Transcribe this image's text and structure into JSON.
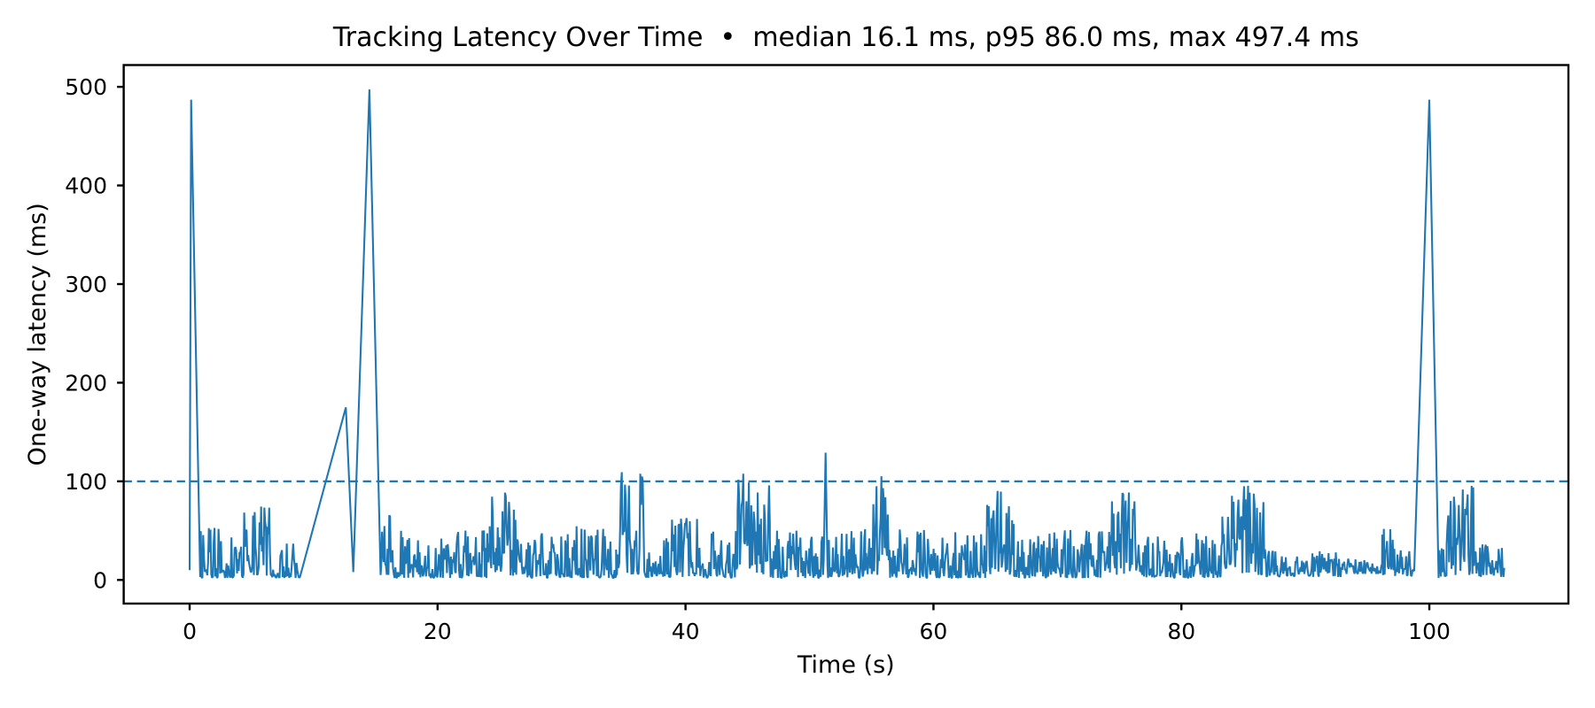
{
  "header": {
    "title": "Tracking Latency Over Time  •  median 16.1 ms, p95 86.0 ms, max 497.4 ms"
  },
  "chart_data": {
    "type": "line",
    "title": "Tracking Latency Over Time",
    "title_display": "Tracking Latency Over Time  •  median 16.1 ms, p95 86.0 ms, max 497.4 ms",
    "stats": {
      "median_ms": 16.1,
      "p95_ms": 86.0,
      "max_ms": 497.4
    },
    "xlabel": "Time (s)",
    "ylabel": "One-way latency (ms)",
    "xlim": [
      -5.32,
      111.22
    ],
    "ylim": [
      -23.96,
      522.1
    ],
    "xticks": [
      0,
      20,
      40,
      60,
      80,
      100
    ],
    "yticks": [
      0,
      100,
      200,
      300,
      400,
      500
    ],
    "grid": false,
    "legend": "none",
    "line_color": "#1f77b4",
    "threshold_ms": 100,
    "threshold_color": "#1f77b4",
    "threshold_style": "dashed",
    "spine_color": "#000000",
    "time_span_s": [
      0,
      106.1
    ],
    "keypoints": {
      "start_spike": [
        0.12,
        487
      ],
      "ramp": [
        [
          8.9,
          3
        ],
        [
          12.6,
          175
        ],
        [
          13.2,
          8
        ]
      ],
      "max_spike": [
        14.5,
        497.4
      ],
      "mid_spike": [
        51.3,
        129
      ],
      "end_spike": [
        100.0,
        487
      ],
      "burst_peaks": [
        [
          5.5,
          92
        ],
        [
          16.0,
          84
        ],
        [
          25.5,
          92
        ],
        [
          35.5,
          110
        ],
        [
          45.5,
          108
        ],
        [
          55.5,
          107
        ],
        [
          65.5,
          100
        ],
        [
          75.5,
          92
        ],
        [
          85.0,
          96
        ],
        [
          102.5,
          97
        ]
      ]
    },
    "noise_model": {
      "seed": 987654321,
      "dt_s": 0.065,
      "min_ms": 0.3
    },
    "segments": [
      {
        "kind": "line",
        "points": [
          [
            0,
            10
          ],
          [
            0.12,
            487
          ],
          [
            0.85,
            3
          ]
        ]
      },
      {
        "kind": "noise",
        "t0": 0.9,
        "t1": 4.4,
        "lo": 2,
        "hi": 55,
        "pow": 2.2
      },
      {
        "kind": "noise",
        "t0": 4.4,
        "t1": 6.6,
        "lo": 4,
        "hi": 92,
        "pow": 1.5
      },
      {
        "kind": "noise",
        "t0": 6.6,
        "t1": 8.85,
        "lo": 2,
        "hi": 38,
        "pow": 2.2
      },
      {
        "kind": "line",
        "points": [
          [
            8.9,
            3
          ],
          [
            12.6,
            175
          ],
          [
            13.2,
            8
          ],
          [
            14.5,
            497.4
          ],
          [
            15.4,
            5
          ]
        ]
      },
      {
        "kind": "noise",
        "t0": 15.45,
        "t1": 16.4,
        "lo": 5,
        "hi": 84,
        "pow": 1.5
      },
      {
        "kind": "noise",
        "t0": 16.4,
        "t1": 24.2,
        "lo": 2,
        "hi": 52,
        "pow": 2.2
      },
      {
        "kind": "noise",
        "t0": 24.2,
        "t1": 26.6,
        "lo": 4,
        "hi": 92,
        "pow": 1.5
      },
      {
        "kind": "noise",
        "t0": 26.6,
        "t1": 34.4,
        "lo": 2,
        "hi": 55,
        "pow": 2.2
      },
      {
        "kind": "noise",
        "t0": 34.4,
        "t1": 36.8,
        "lo": 5,
        "hi": 110,
        "pow": 1.5
      },
      {
        "kind": "noise",
        "t0": 36.8,
        "t1": 38.2,
        "lo": 2,
        "hi": 45,
        "pow": 2.2
      },
      {
        "kind": "noise",
        "t0": 38.2,
        "t1": 41.0,
        "lo": 3,
        "hi": 70,
        "pow": 1.8
      },
      {
        "kind": "noise",
        "t0": 41.0,
        "t1": 44.2,
        "lo": 2,
        "hi": 50,
        "pow": 2.2
      },
      {
        "kind": "noise",
        "t0": 44.2,
        "t1": 46.8,
        "lo": 5,
        "hi": 108,
        "pow": 1.5
      },
      {
        "kind": "noise",
        "t0": 46.8,
        "t1": 51.1,
        "lo": 2,
        "hi": 52,
        "pow": 2.2
      },
      {
        "kind": "line",
        "points": [
          [
            51.15,
            20
          ],
          [
            51.3,
            129
          ],
          [
            51.45,
            15
          ]
        ]
      },
      {
        "kind": "noise",
        "t0": 51.5,
        "t1": 54.5,
        "lo": 2,
        "hi": 55,
        "pow": 2.2
      },
      {
        "kind": "noise",
        "t0": 54.5,
        "t1": 56.5,
        "lo": 5,
        "hi": 107,
        "pow": 1.5
      },
      {
        "kind": "noise",
        "t0": 56.5,
        "t1": 64.2,
        "lo": 2,
        "hi": 52,
        "pow": 2.2
      },
      {
        "kind": "noise",
        "t0": 64.2,
        "t1": 66.5,
        "lo": 5,
        "hi": 100,
        "pow": 1.5
      },
      {
        "kind": "noise",
        "t0": 66.5,
        "t1": 74.4,
        "lo": 2,
        "hi": 52,
        "pow": 2.2
      },
      {
        "kind": "noise",
        "t0": 74.4,
        "t1": 76.6,
        "lo": 5,
        "hi": 92,
        "pow": 1.5
      },
      {
        "kind": "noise",
        "t0": 76.6,
        "t1": 83.3,
        "lo": 2,
        "hi": 50,
        "pow": 2.2
      },
      {
        "kind": "noise",
        "t0": 83.3,
        "t1": 86.8,
        "lo": 5,
        "hi": 96,
        "pow": 1.5
      },
      {
        "kind": "noise",
        "t0": 86.8,
        "t1": 93.0,
        "lo": 3,
        "hi": 30,
        "pow": 1.8
      },
      {
        "kind": "noise",
        "t0": 93.0,
        "t1": 96.2,
        "lo": 6,
        "hi": 22,
        "pow": 1.5
      },
      {
        "kind": "noise",
        "t0": 96.2,
        "t1": 97.8,
        "lo": 4,
        "hi": 52,
        "pow": 1.6
      },
      {
        "kind": "noise",
        "t0": 97.8,
        "t1": 98.8,
        "lo": 4,
        "hi": 30,
        "pow": 1.8
      },
      {
        "kind": "line",
        "points": [
          [
            98.8,
            15
          ],
          [
            100.0,
            487
          ],
          [
            100.75,
            2
          ]
        ]
      },
      {
        "kind": "noise",
        "t0": 100.8,
        "t1": 101.4,
        "lo": 3,
        "hi": 35,
        "pow": 2.0
      },
      {
        "kind": "noise",
        "t0": 101.4,
        "t1": 103.9,
        "lo": 5,
        "hi": 97,
        "pow": 1.5
      },
      {
        "kind": "noise",
        "t0": 103.9,
        "t1": 106.1,
        "lo": 3,
        "hi": 38,
        "pow": 2.0
      }
    ]
  }
}
